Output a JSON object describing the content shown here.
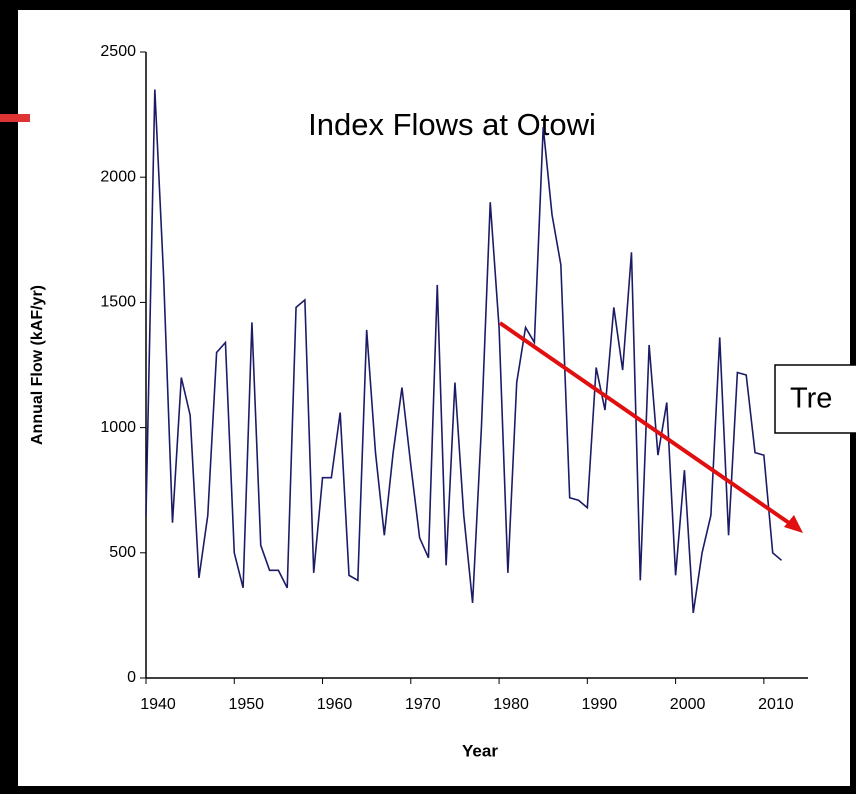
{
  "chart_data": {
    "type": "line",
    "title": "Index Flows at Otowi",
    "x_label": "Year",
    "y_label": "Annual Flow (kAF/yr)",
    "annotation": "Tre",
    "x": [
      1940,
      1941,
      1942,
      1943,
      1944,
      1945,
      1946,
      1947,
      1948,
      1949,
      1950,
      1951,
      1952,
      1953,
      1954,
      1955,
      1956,
      1957,
      1958,
      1959,
      1960,
      1961,
      1962,
      1963,
      1964,
      1965,
      1966,
      1967,
      1968,
      1969,
      1970,
      1971,
      1972,
      1973,
      1974,
      1975,
      1976,
      1977,
      1978,
      1979,
      1980,
      1981,
      1982,
      1983,
      1984,
      1985,
      1986,
      1987,
      1988,
      1989,
      1990,
      1991,
      1992,
      1993,
      1994,
      1995,
      1996,
      1997,
      1998,
      1999,
      2000,
      2001,
      2002,
      2003,
      2004,
      2005,
      2006,
      2007,
      2008,
      2009,
      2010,
      2011,
      2012
    ],
    "series": [
      {
        "name": "Index Flows",
        "color": "#1c1c66",
        "values": [
          650,
          2350,
          1600,
          620,
          1200,
          1050,
          400,
          650,
          1300,
          1340,
          500,
          360,
          1420,
          530,
          430,
          430,
          360,
          1480,
          1510,
          420,
          800,
          800,
          1060,
          410,
          390,
          1390,
          900,
          570,
          900,
          1160,
          850,
          560,
          480,
          1570,
          450,
          1180,
          650,
          300,
          1000,
          1900,
          1400,
          420,
          1180,
          1400,
          1340,
          2200,
          1850,
          1650,
          720,
          710,
          680,
          1240,
          1070,
          1480,
          1230,
          1700,
          390,
          1330,
          890,
          1100,
          410,
          830,
          260,
          500,
          650,
          1360,
          570,
          1220,
          1210,
          900,
          890,
          500,
          470
        ]
      }
    ],
    "xlim": [
      1940,
      2015
    ],
    "xticks": [
      1940,
      1950,
      1960,
      1970,
      1980,
      1990,
      2000,
      2010
    ],
    "ylim": [
      0,
      2500
    ],
    "yticks": [
      0,
      500,
      1000,
      1500,
      2000,
      2500
    ]
  }
}
